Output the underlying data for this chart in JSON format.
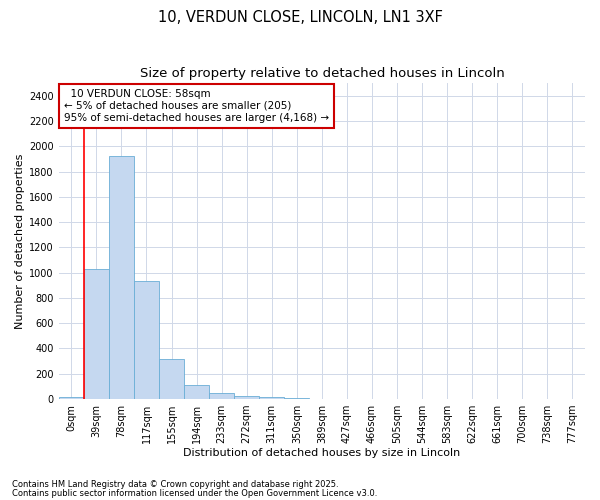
{
  "title": "10, VERDUN CLOSE, LINCOLN, LN1 3XF",
  "subtitle": "Size of property relative to detached houses in Lincoln",
  "xlabel": "Distribution of detached houses by size in Lincoln",
  "ylabel": "Number of detached properties",
  "bin_labels": [
    "0sqm",
    "39sqm",
    "78sqm",
    "117sqm",
    "155sqm",
    "194sqm",
    "233sqm",
    "272sqm",
    "311sqm",
    "350sqm",
    "389sqm",
    "427sqm",
    "466sqm",
    "505sqm",
    "544sqm",
    "583sqm",
    "622sqm",
    "661sqm",
    "700sqm",
    "738sqm",
    "777sqm"
  ],
  "bar_heights": [
    15,
    1025,
    1920,
    930,
    315,
    110,
    45,
    25,
    15,
    5,
    0,
    0,
    0,
    0,
    0,
    0,
    0,
    0,
    0,
    0,
    0
  ],
  "bar_color": "#c5d8f0",
  "bar_edgecolor": "#6aaed6",
  "ylim": [
    0,
    2500
  ],
  "yticks": [
    0,
    200,
    400,
    600,
    800,
    1000,
    1200,
    1400,
    1600,
    1800,
    2000,
    2200,
    2400
  ],
  "red_line_x": 1.0,
  "annotation_title": "10 VERDUN CLOSE: 58sqm",
  "annotation_line1": "← 5% of detached houses are smaller (205)",
  "annotation_line2": "95% of semi-detached houses are larger (4,168) →",
  "annotation_box_facecolor": "#ffffff",
  "annotation_box_edgecolor": "#cc0000",
  "footnote1": "Contains HM Land Registry data © Crown copyright and database right 2025.",
  "footnote2": "Contains public sector information licensed under the Open Government Licence v3.0.",
  "background_color": "#ffffff",
  "grid_color": "#d0d8e8",
  "title_fontsize": 10.5,
  "subtitle_fontsize": 9.5,
  "tick_fontsize": 7,
  "axis_label_fontsize": 8,
  "annotation_fontsize": 7.5,
  "footnote_fontsize": 6
}
